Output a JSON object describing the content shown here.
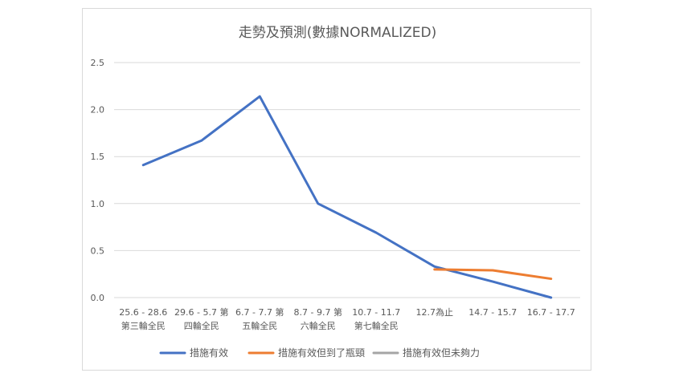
{
  "chart_data": {
    "type": "line",
    "title": "走勢及預測(數據NORMALIZED)",
    "xlabel": "",
    "ylabel": "",
    "ylim": [
      0,
      2.5
    ],
    "yticks": [
      "0.0",
      "0.5",
      "1.0",
      "1.5",
      "2.0",
      "2.5"
    ],
    "grid": true,
    "legend_position": "bottom",
    "categories": [
      [
        "25.6 - 28.6",
        "第三輪全民"
      ],
      [
        "29.6 - 5.7 第",
        "四輪全民"
      ],
      [
        "6.7 - 7.7 第",
        "五輪全民"
      ],
      [
        "8.7 - 9.7 第",
        "六輪全民"
      ],
      [
        "10.7 - 11.7",
        "第七輪全民"
      ],
      [
        "12.7為止",
        ""
      ],
      [
        "14.7 - 15.7",
        ""
      ],
      [
        "16.7 - 17.7",
        ""
      ]
    ],
    "series": [
      {
        "name": "措施有效",
        "color": "#4472c4",
        "values": [
          1.41,
          1.67,
          2.14,
          1.0,
          0.69,
          0.33,
          0.17,
          0.0
        ]
      },
      {
        "name": "措施有效但到了瓶頸",
        "color": "#ed7d31",
        "values": [
          null,
          null,
          null,
          null,
          null,
          0.3,
          0.29,
          0.2
        ]
      },
      {
        "name": "措施有效但未夠力",
        "color": "#a5a5a5",
        "values": [
          null,
          null,
          null,
          null,
          null,
          null,
          null,
          null
        ]
      }
    ]
  }
}
